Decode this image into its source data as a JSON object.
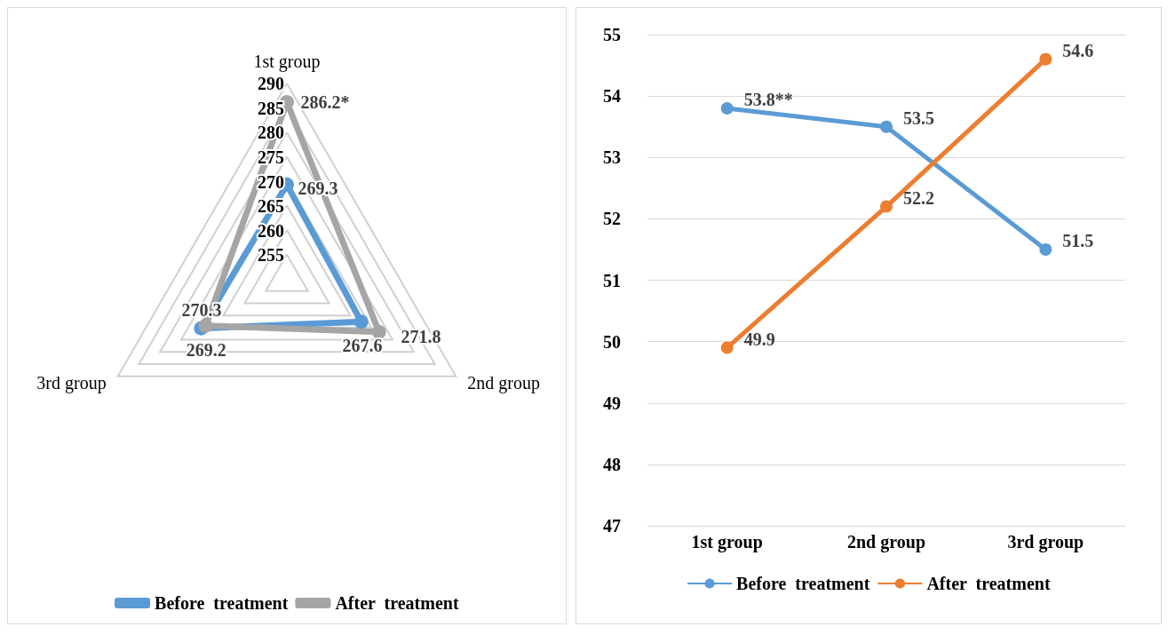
{
  "chart_data": [
    {
      "type": "radar",
      "categories": [
        "1st group",
        "2nd group",
        "3rd group"
      ],
      "ylim": [
        250,
        290
      ],
      "yticks": [
        255,
        260,
        265,
        270,
        275,
        280,
        285,
        290
      ],
      "marker": "circle",
      "legend": "bottom",
      "series": [
        {
          "name": "Before  treatment",
          "color": "#5b9bd5",
          "values": [
            269.3,
            267.6,
            270.3
          ],
          "value_labels": [
            "269.3",
            "267.6",
            "270.3"
          ]
        },
        {
          "name": "After  treatment",
          "color": "#a5a5a5",
          "values": [
            286.2,
            271.8,
            269.2
          ],
          "value_labels": [
            "286.2*",
            "271.8",
            "269.2"
          ]
        }
      ]
    },
    {
      "type": "line",
      "categories": [
        "1st group",
        "2nd group",
        "3rd group"
      ],
      "ylim": [
        47,
        55
      ],
      "yticks": [
        47,
        48,
        49,
        50,
        51,
        52,
        53,
        54,
        55
      ],
      "grid": "y",
      "marker": "circle",
      "legend": "bottom",
      "series": [
        {
          "name": "Before  treatment",
          "color": "#5b9bd5",
          "values": [
            53.8,
            53.5,
            51.5
          ],
          "value_labels": [
            "53.8**",
            "53.5",
            "51.5"
          ]
        },
        {
          "name": "After  treatment",
          "color": "#ed7d31",
          "values": [
            49.9,
            52.2,
            54.6
          ],
          "value_labels": [
            "49.9",
            "52.2",
            "54.6"
          ]
        }
      ]
    }
  ]
}
